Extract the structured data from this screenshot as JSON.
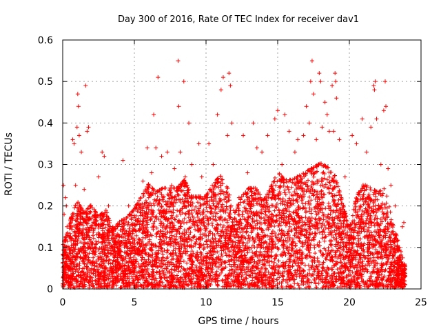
{
  "chart_data": {
    "type": "scatter",
    "title": "Day 300 of 2016, Rate Of TEC Index for receiver dav1",
    "xlabel": "GPS time / hours",
    "ylabel": "ROTI / TECUs",
    "xlim": [
      0,
      25
    ],
    "ylim": [
      0,
      0.6
    ],
    "xticks": [
      0,
      5,
      10,
      15,
      20,
      25
    ],
    "yticks": [
      0,
      0.1,
      0.2,
      0.3,
      0.4,
      0.5,
      0.6
    ],
    "xtick_labels": [
      "0",
      "5",
      "10",
      "15",
      "20",
      "25"
    ],
    "ytick_labels": [
      "0",
      "0.1",
      "0.2",
      "0.3",
      "0.4",
      "0.5",
      "0.6"
    ],
    "grid": true,
    "marker": "+",
    "color": "#ff0000",
    "series": [
      {
        "name": "ROTI",
        "points": [
          [
            0.05,
            0.25
          ],
          [
            0.1,
            0.18
          ],
          [
            0.15,
            0.12
          ],
          [
            0.2,
            0.22
          ],
          [
            0.25,
            0.2
          ],
          [
            0.3,
            0.15
          ],
          [
            0.35,
            0.08
          ],
          [
            0.4,
            0.05
          ],
          [
            0.6,
            0.17
          ],
          [
            0.7,
            0.36
          ],
          [
            0.8,
            0.35
          ],
          [
            0.9,
            0.25
          ],
          [
            1.0,
            0.39
          ],
          [
            1.05,
            0.47
          ],
          [
            1.1,
            0.44
          ],
          [
            1.15,
            0.37
          ],
          [
            1.3,
            0.33
          ],
          [
            1.5,
            0.24
          ],
          [
            1.6,
            0.49
          ],
          [
            1.7,
            0.38
          ],
          [
            1.8,
            0.39
          ],
          [
            1.9,
            0.2
          ],
          [
            2.2,
            0.16
          ],
          [
            2.5,
            0.27
          ],
          [
            2.75,
            0.33
          ],
          [
            2.9,
            0.32
          ],
          [
            3.2,
            0.2
          ],
          [
            3.5,
            0.15
          ],
          [
            4.2,
            0.31
          ],
          [
            4.6,
            0.2
          ],
          [
            4.9,
            0.12
          ],
          [
            5.3,
            0.2
          ],
          [
            5.6,
            0.26
          ],
          [
            5.9,
            0.34
          ],
          [
            6.0,
            0.22
          ],
          [
            6.2,
            0.28
          ],
          [
            6.35,
            0.42
          ],
          [
            6.5,
            0.34
          ],
          [
            6.65,
            0.51
          ],
          [
            6.9,
            0.32
          ],
          [
            7.3,
            0.33
          ],
          [
            7.6,
            0.25
          ],
          [
            7.8,
            0.29
          ],
          [
            8.05,
            0.55
          ],
          [
            8.1,
            0.44
          ],
          [
            8.2,
            0.33
          ],
          [
            8.45,
            0.5
          ],
          [
            8.55,
            0.27
          ],
          [
            8.8,
            0.4
          ],
          [
            9.0,
            0.3
          ],
          [
            9.3,
            0.22
          ],
          [
            9.5,
            0.35
          ],
          [
            9.7,
            0.27
          ],
          [
            10.2,
            0.35
          ],
          [
            10.5,
            0.3
          ],
          [
            10.8,
            0.42
          ],
          [
            11.05,
            0.48
          ],
          [
            11.2,
            0.51
          ],
          [
            11.5,
            0.37
          ],
          [
            11.6,
            0.52
          ],
          [
            11.7,
            0.49
          ],
          [
            11.8,
            0.4
          ],
          [
            12.3,
            0.22
          ],
          [
            12.6,
            0.37
          ],
          [
            12.9,
            0.28
          ],
          [
            13.3,
            0.4
          ],
          [
            13.55,
            0.34
          ],
          [
            13.9,
            0.33
          ],
          [
            14.3,
            0.37
          ],
          [
            14.6,
            0.22
          ],
          [
            14.8,
            0.41
          ],
          [
            15.0,
            0.43
          ],
          [
            15.3,
            0.3
          ],
          [
            15.5,
            0.42
          ],
          [
            15.8,
            0.38
          ],
          [
            16.2,
            0.33
          ],
          [
            16.4,
            0.36
          ],
          [
            16.8,
            0.37
          ],
          [
            17.0,
            0.44
          ],
          [
            17.2,
            0.4
          ],
          [
            17.3,
            0.5
          ],
          [
            17.4,
            0.55
          ],
          [
            17.5,
            0.47
          ],
          [
            17.7,
            0.36
          ],
          [
            17.9,
            0.52
          ],
          [
            18.0,
            0.5
          ],
          [
            18.1,
            0.39
          ],
          [
            18.3,
            0.45
          ],
          [
            18.45,
            0.42
          ],
          [
            18.6,
            0.38
          ],
          [
            18.8,
            0.49
          ],
          [
            18.9,
            0.38
          ],
          [
            19.0,
            0.52
          ],
          [
            19.05,
            0.5
          ],
          [
            19.1,
            0.46
          ],
          [
            19.3,
            0.36
          ],
          [
            19.7,
            0.27
          ],
          [
            20.2,
            0.37
          ],
          [
            20.5,
            0.35
          ],
          [
            20.9,
            0.41
          ],
          [
            21.2,
            0.33
          ],
          [
            21.5,
            0.39
          ],
          [
            21.7,
            0.49
          ],
          [
            21.75,
            0.48
          ],
          [
            21.8,
            0.5
          ],
          [
            21.9,
            0.41
          ],
          [
            22.2,
            0.3
          ],
          [
            22.4,
            0.43
          ],
          [
            22.5,
            0.5
          ],
          [
            22.55,
            0.44
          ],
          [
            22.7,
            0.29
          ],
          [
            22.9,
            0.25
          ],
          [
            23.2,
            0.2
          ],
          [
            23.5,
            0.1
          ],
          [
            23.7,
            0.15
          ],
          [
            23.8,
            0.16
          ],
          [
            23.85,
            0.06
          ],
          [
            23.9,
            0.03
          ]
        ]
      }
    ],
    "density_note_envelope": [
      [
        0.0,
        0.1
      ],
      [
        0.5,
        0.16
      ],
      [
        1.0,
        0.21
      ],
      [
        1.5,
        0.18
      ],
      [
        2.0,
        0.2
      ],
      [
        2.5,
        0.17
      ],
      [
        3.0,
        0.19
      ],
      [
        3.5,
        0.14
      ],
      [
        4.0,
        0.16
      ],
      [
        4.5,
        0.17
      ],
      [
        5.0,
        0.19
      ],
      [
        5.5,
        0.22
      ],
      [
        6.0,
        0.25
      ],
      [
        6.5,
        0.23
      ],
      [
        7.0,
        0.24
      ],
      [
        7.5,
        0.24
      ],
      [
        8.0,
        0.24
      ],
      [
        8.5,
        0.26
      ],
      [
        9.0,
        0.22
      ],
      [
        9.5,
        0.22
      ],
      [
        10.0,
        0.22
      ],
      [
        10.5,
        0.25
      ],
      [
        11.0,
        0.27
      ],
      [
        11.5,
        0.24
      ],
      [
        12.0,
        0.18
      ],
      [
        12.5,
        0.22
      ],
      [
        13.0,
        0.24
      ],
      [
        13.5,
        0.24
      ],
      [
        14.0,
        0.21
      ],
      [
        14.5,
        0.24
      ],
      [
        15.0,
        0.28
      ],
      [
        15.5,
        0.26
      ],
      [
        16.0,
        0.26
      ],
      [
        16.5,
        0.27
      ],
      [
        17.0,
        0.28
      ],
      [
        17.5,
        0.29
      ],
      [
        18.0,
        0.3
      ],
      [
        18.5,
        0.29
      ],
      [
        19.0,
        0.27
      ],
      [
        19.5,
        0.21
      ],
      [
        20.0,
        0.14
      ],
      [
        20.5,
        0.22
      ],
      [
        21.0,
        0.25
      ],
      [
        21.5,
        0.24
      ],
      [
        22.0,
        0.23
      ],
      [
        22.5,
        0.24
      ],
      [
        23.0,
        0.16
      ],
      [
        23.5,
        0.1
      ],
      [
        23.9,
        0.05
      ]
    ]
  }
}
